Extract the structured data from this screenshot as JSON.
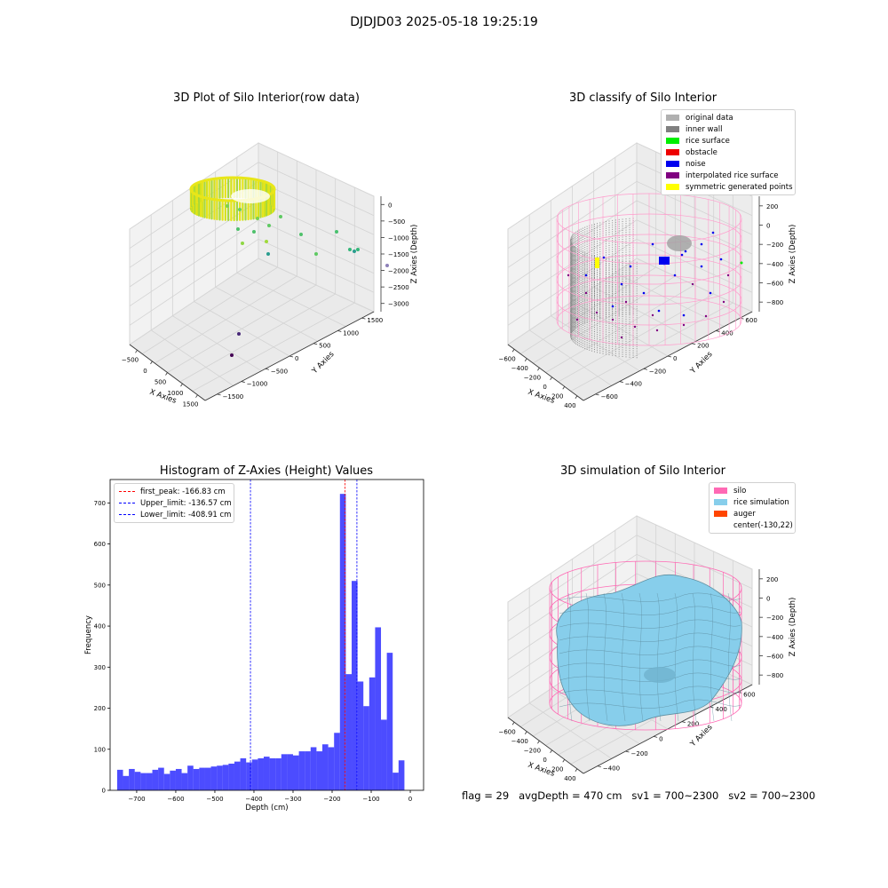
{
  "figure": {
    "suptitle": "DJDJD03 2025-05-18 19:25:19",
    "footer": "flag = 29   avgDepth = 470 cm   sv1 = 700~2300   sv2 = 700~2300"
  },
  "plot1": {
    "title": "3D Plot of Silo Interior(row data)",
    "xlabel": "X Axies",
    "ylabel": "Y Axies",
    "zlabel": "Z Axies (Depth)",
    "xticks": [
      "−500",
      "0",
      "500",
      "1000",
      "1500"
    ],
    "yticks": [
      "−1500",
      "−1000",
      "−500",
      "0",
      "500",
      "1000",
      "1500"
    ],
    "zticks": [
      "0",
      "−500",
      "−1000",
      "−1500",
      "−2000",
      "−2500",
      "−3000"
    ]
  },
  "plot2": {
    "title": "3D classify of Silo Interior",
    "xlabel": "X Axies",
    "ylabel": "Y Axies",
    "zlabel": "Z Axies (Depth)",
    "xticks": [
      "−600",
      "−400",
      "−200",
      "0",
      "200",
      "400"
    ],
    "yticks": [
      "−600",
      "−400",
      "−200",
      "0",
      "200",
      "400",
      "600"
    ],
    "zticks": [
      "200",
      "0",
      "−200",
      "−400",
      "−600",
      "−800"
    ],
    "legend": [
      {
        "label": "original data",
        "color": "#b0b0b0"
      },
      {
        "label": "inner wall",
        "color": "#808080"
      },
      {
        "label": "rice surface",
        "color": "#00ee00"
      },
      {
        "label": "obstacle",
        "color": "#ee0000"
      },
      {
        "label": "noise",
        "color": "#0000ee"
      },
      {
        "label": "interpolated rice surface",
        "color": "#800080"
      },
      {
        "label": "symmetric generated points",
        "color": "#ffff00"
      }
    ]
  },
  "plot4": {
    "title": "3D simulation of Silo Interior",
    "xlabel": "X Axies",
    "ylabel": "Y Axies",
    "zlabel": "Z Axies (Depth)",
    "xticks": [
      "−600",
      "−400",
      "−200",
      "0",
      "200",
      "400"
    ],
    "yticks": [
      "−400",
      "−200",
      "0",
      "200",
      "400",
      "600"
    ],
    "zticks": [
      "200",
      "0",
      "−200",
      "−400",
      "−600",
      "−800"
    ],
    "legend": [
      {
        "label": "silo",
        "color": "#ff69b4"
      },
      {
        "label": "rice simulation",
        "color": "#87ceeb"
      },
      {
        "label": "auger",
        "color": "#ff4500"
      },
      {
        "label": "center(-130,22)",
        "color": ""
      }
    ]
  },
  "chart_data": {
    "type": "bar",
    "title": "Histogram of Z-Axies (Height) Values",
    "xlabel": "Depth (cm)",
    "ylabel": "Frequency",
    "xlim": [
      -768,
      34
    ],
    "ylim": [
      0,
      757
    ],
    "xticks": [
      -700,
      -600,
      -500,
      -400,
      -300,
      -200,
      -100,
      0
    ],
    "xtick_labels": [
      "−700",
      "−600",
      "−500",
      "−400",
      "−300",
      "−200",
      "−100",
      "0"
    ],
    "yticks": [
      0,
      100,
      200,
      300,
      400,
      500,
      600,
      700
    ],
    "bin_start": -750,
    "bin_width": 15,
    "color": "#0000ff",
    "values": [
      50,
      35,
      52,
      45,
      42,
      42,
      50,
      55,
      40,
      48,
      52,
      42,
      60,
      52,
      55,
      55,
      58,
      60,
      62,
      65,
      70,
      78,
      68,
      75,
      78,
      82,
      78,
      78,
      88,
      88,
      85,
      95,
      95,
      105,
      95,
      112,
      105,
      140,
      722,
      283,
      510,
      265,
      205,
      275,
      397,
      172,
      335,
      43,
      73
    ],
    "vlines": [
      {
        "label": "first_peak: -166.83 cm",
        "x": -166.83,
        "color": "#ff0000"
      },
      {
        "label": "Upper_limit: -136.57 cm",
        "x": -136.57,
        "color": "#0000ff"
      },
      {
        "label": "Lower_limit: -408.91 cm",
        "x": -408.91,
        "color": "#0000ff"
      }
    ]
  }
}
